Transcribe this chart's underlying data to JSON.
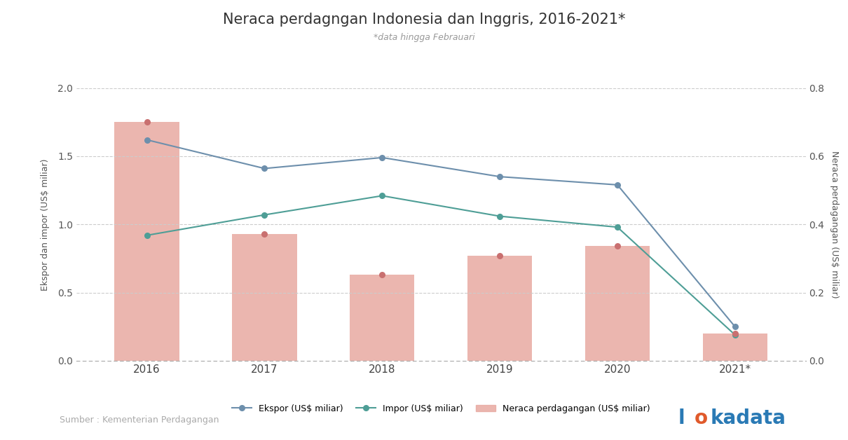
{
  "title": "Neraca perdagngan Indonesia dan Inggris, 2016-2021*",
  "subtitle": "*data hingga Febrauari",
  "years": [
    "2016",
    "2017",
    "2018",
    "2019",
    "2020",
    "2021*"
  ],
  "ekspor": [
    1.62,
    1.41,
    1.49,
    1.35,
    1.29,
    0.25
  ],
  "impor": [
    0.92,
    1.07,
    1.21,
    1.06,
    0.98,
    0.19
  ],
  "neraca_bar_left": [
    1.75,
    0.93,
    0.63,
    0.77,
    0.84,
    0.2
  ],
  "ekspor_color": "#6d8fac",
  "impor_color": "#4e9e96",
  "neraca_bar_color": "#e8a9a1",
  "neraca_dot_color": "#c97070",
  "left_ylim": [
    0,
    2.0
  ],
  "right_ylim": [
    0,
    0.8
  ],
  "left_yticks": [
    0.0,
    0.5,
    1.0,
    1.5,
    2.0
  ],
  "right_yticks": [
    0.0,
    0.2,
    0.4,
    0.6,
    0.8
  ],
  "ylabel_left": "Ekspor dan impor (US$ miliar)",
  "ylabel_right": "Neraca perdagangan (US$ miliar)",
  "source_text": "Sumber : Kementerian Perdagangan",
  "logo_color_main": "#2a7ab5",
  "logo_color_o": "#e05a2b",
  "title_fontsize": 15,
  "subtitle_fontsize": 9,
  "axis_label_fontsize": 9,
  "tick_fontsize": 10,
  "legend_fontsize": 9,
  "source_fontsize": 9,
  "bar_width": 0.55
}
